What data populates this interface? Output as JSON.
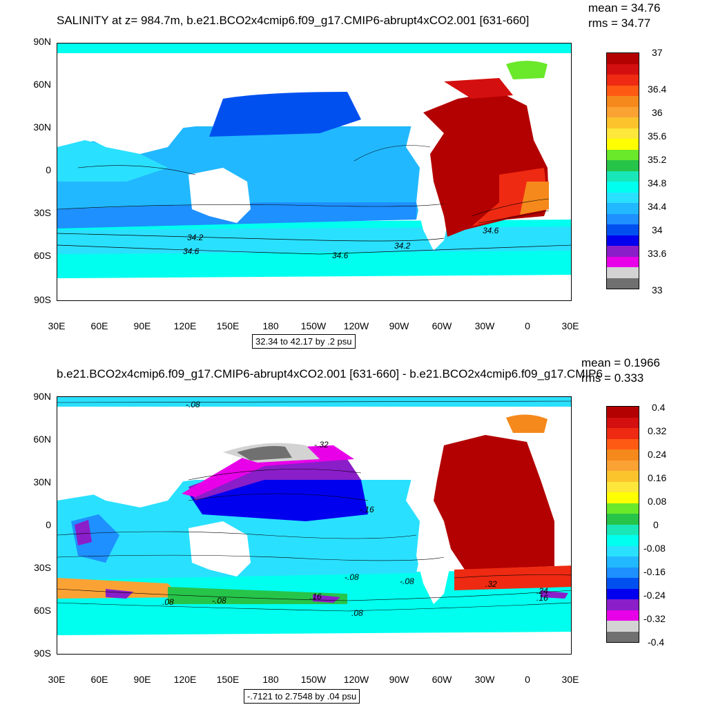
{
  "panels": [
    {
      "id": "top",
      "title": "SALINITY at z= 984.7m, b.e21.BCO2x4cmip6.f09_g17.CMIP6-abrupt4xCO2.001 [631-660]",
      "mean_text": "mean = 34.76",
      "rms_text": "rms = 34.77",
      "range_text": "32.34 to 42.17 by .2 psu",
      "lat_labels": [
        "90N",
        "60N",
        "30N",
        "0",
        "30S",
        "60S",
        "90S"
      ],
      "lon_labels": [
        "30E",
        "60E",
        "90E",
        "120E",
        "150E",
        "180",
        "150W",
        "120W",
        "90W",
        "60W",
        "30W",
        "0",
        "30E"
      ],
      "colorbar": {
        "colors": [
          "#b30000",
          "#d40f0f",
          "#ee2a12",
          "#ff5a13",
          "#f5891c",
          "#fba235",
          "#fbc42d",
          "#fde73a",
          "#ffff00",
          "#6ae82a",
          "#27c44a",
          "#19e7b8",
          "#00ffef",
          "#2ae0ff",
          "#22b8ff",
          "#1e90ff",
          "#0050f0",
          "#0000ee",
          "#8a1ec9",
          "#e800e8",
          "#d3d3d3",
          "#707070"
        ],
        "labels": [
          "37",
          "36.4",
          "36",
          "35.6",
          "35.2",
          "34.8",
          "34.4",
          "34",
          "33.6",
          "33"
        ]
      },
      "contour_labels": [
        "34.2",
        "34.6",
        "34.6",
        "34.2",
        "34.6"
      ]
    },
    {
      "id": "bottom",
      "title": "b.e21.BCO2x4cmip6.f09_g17.CMIP6-abrupt4xCO2.001 [631-660] - b.e21.BCO2x4cmip6.f09_g17.CMIP6",
      "mean_text": "mean = 0.1966",
      "rms_text": "rms = 0.333",
      "range_text": "-.7121 to 2.7548 by .04 psu",
      "lat_labels": [
        "90N",
        "60N",
        "30N",
        "0",
        "30S",
        "60S",
        "90S"
      ],
      "lon_labels": [
        "30E",
        "60E",
        "90E",
        "120E",
        "150E",
        "180",
        "150W",
        "120W",
        "90W",
        "60W",
        "30W",
        "0",
        "30E"
      ],
      "colorbar": {
        "colors": [
          "#b30000",
          "#d40f0f",
          "#ee2a12",
          "#ff5a13",
          "#f5891c",
          "#fba235",
          "#fbc42d",
          "#fde73a",
          "#ffff00",
          "#6ae82a",
          "#27c44a",
          "#19e7b8",
          "#00ffef",
          "#2ae0ff",
          "#22b8ff",
          "#1e90ff",
          "#0050f0",
          "#0000ee",
          "#8a1ec9",
          "#e800e8",
          "#d3d3d3",
          "#707070"
        ],
        "labels": [
          "0.4",
          "0.32",
          "0.24",
          "0.16",
          "0.08",
          "0",
          "-0.08",
          "-0.16",
          "-0.24",
          "-0.32",
          "-0.4"
        ]
      },
      "contour_labels": [
        "-.08",
        "-.32",
        "-.16",
        "-.08",
        ".08",
        "-.08",
        ".08",
        ".16",
        ".32",
        ".24",
        ".16",
        "-.08"
      ]
    }
  ]
}
